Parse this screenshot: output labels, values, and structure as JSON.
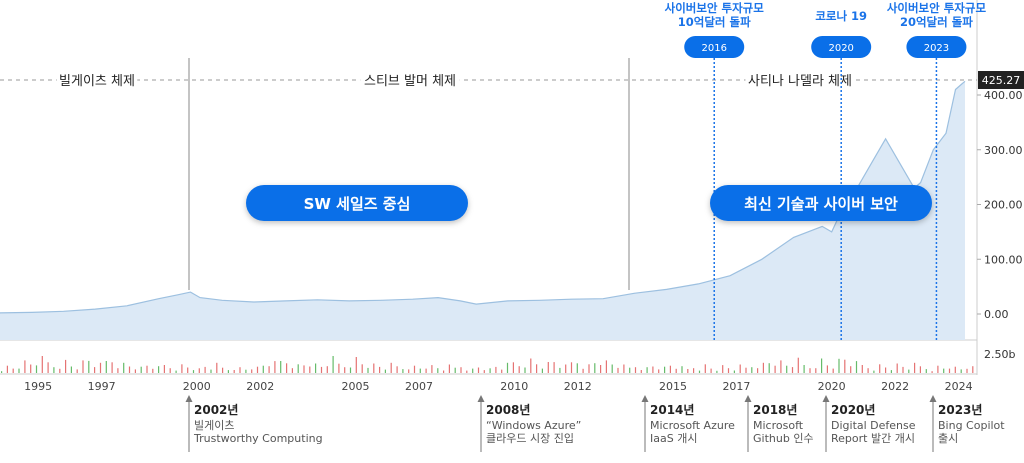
{
  "chart_data": {
    "type": "area",
    "last_price": "425.27",
    "y_ticks": [
      "400.00",
      "300.00",
      "200.00",
      "100.00",
      "0.00"
    ],
    "y_tick_values": [
      400,
      300,
      200,
      100,
      0
    ],
    "volume_label": "2.50b",
    "x_ticks": [
      "1995",
      "1997",
      "2000",
      "2002",
      "2005",
      "2007",
      "2010",
      "2012",
      "2015",
      "2017",
      "2020",
      "2022",
      "2024"
    ],
    "x_tick_values": [
      1995,
      1997,
      2000,
      2002,
      2005,
      2007,
      2010,
      2012,
      2015,
      2017,
      2020,
      2022,
      2024
    ],
    "series": [
      {
        "x": [
          1994.0,
          1995.0,
          1996.0,
          1997.0,
          1998.0,
          1999.0,
          1999.6,
          2000.0,
          2000.3,
          2001.0,
          2002.0,
          2003.0,
          2004.0,
          2005.0,
          2006.0,
          2007.0,
          2007.8,
          2008.5,
          2009.0,
          2010.0,
          2011.0,
          2012.0,
          2013.0,
          2014.0,
          2015.0,
          2016.0,
          2017.0,
          2018.0,
          2019.0,
          2019.9,
          2020.2,
          2020.6,
          2021.0,
          2021.5,
          2021.9,
          2022.3,
          2022.8,
          2023.0,
          2023.4,
          2023.8,
          2024.1,
          2024.3,
          2024.4
        ],
        "y": [
          2,
          3,
          5,
          9,
          15,
          28,
          35,
          40,
          30,
          25,
          22,
          24,
          26,
          24,
          25,
          27,
          30,
          24,
          18,
          24,
          25,
          27,
          28,
          38,
          45,
          55,
          70,
          100,
          140,
          160,
          150,
          200,
          230,
          280,
          320,
          280,
          230,
          240,
          300,
          330,
          410,
          420,
          425
        ]
      }
    ],
    "volume": [
      3,
      5,
      4,
      6,
      8,
      7,
      9,
      10,
      8,
      6,
      7,
      9,
      6,
      5,
      8,
      10,
      7,
      6,
      9,
      11,
      8,
      7,
      6,
      5,
      4,
      6,
      5,
      4,
      6,
      5,
      4,
      6,
      5,
      4,
      3,
      5,
      4,
      6,
      4,
      3,
      5,
      4
    ],
    "eras": [
      {
        "label": "빌게이츠 체제"
      },
      {
        "label": "스티브 발머 체제"
      },
      {
        "label": "사티나 나델라 체제"
      }
    ],
    "events": [
      {
        "year": 2016,
        "pill": "2016",
        "title": [
          "사이버보안 투자규모",
          "10억달러 돌파"
        ]
      },
      {
        "year": 2020,
        "pill": "2020",
        "title": [
          "코로나 19"
        ]
      },
      {
        "year": 2023,
        "pill": "2023",
        "title": [
          "사이버보안 투자규모",
          "20억달러 돌파"
        ]
      }
    ],
    "phase_labels": [
      "SW 세일즈 중심",
      "최신 기술과 사이버 보안"
    ],
    "milestones": [
      {
        "year_label": "2002년",
        "lines": [
          "빌게이츠",
          "Trustworthy Computing"
        ]
      },
      {
        "year_label": "2008년",
        "lines": [
          "“Windows Azure”",
          "클라우드 시장 진입"
        ]
      },
      {
        "year_label": "2014년",
        "lines": [
          "Microsoft Azure",
          "IaaS 개시"
        ]
      },
      {
        "year_label": "2018년",
        "lines": [
          "Microsoft",
          "Github 인수"
        ]
      },
      {
        "year_label": "2020년",
        "lines": [
          "Digital Defense",
          "Report 발간 개시"
        ]
      },
      {
        "year_label": "2023년",
        "lines": [
          "Bing Copilot",
          "출시"
        ]
      }
    ],
    "colors": {
      "line": "#9dc0e0",
      "fill": "#dce9f6",
      "accent": "#1a73e8",
      "pill": "#0a6fe8",
      "volume_up": "#e57373",
      "volume_down": "#66bb6a",
      "price_badge": "#222222"
    }
  }
}
